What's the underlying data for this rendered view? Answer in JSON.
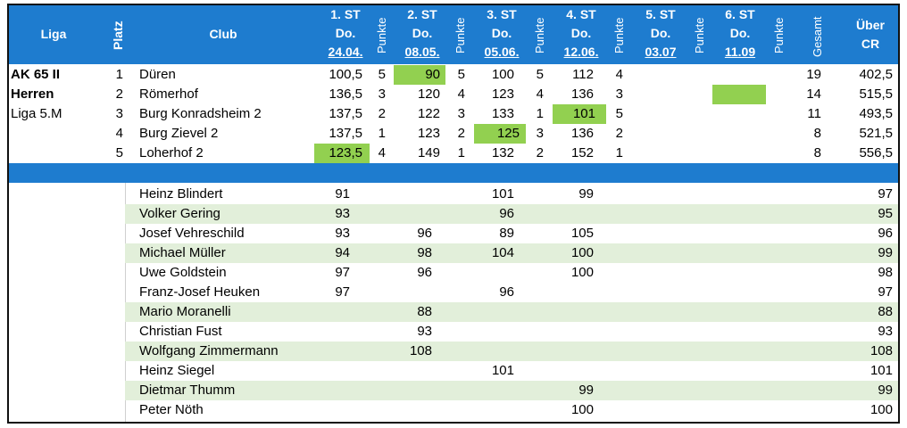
{
  "header": {
    "liga": "Liga",
    "platz": "Platz",
    "club": "Club",
    "st1": [
      "1. ST",
      "Do.",
      "24.04."
    ],
    "st2": [
      "2. ST",
      "Do.",
      "08.05."
    ],
    "st3": [
      "3. ST",
      "Do.",
      "05.06."
    ],
    "st4": [
      "4. ST",
      "Do.",
      "12.06."
    ],
    "st5": [
      "5. ST",
      "Do.",
      "03.07"
    ],
    "st6": [
      "6. ST",
      "Do.",
      "11.09"
    ],
    "punkte": "Punkte",
    "gesamt": "Gesamt",
    "ueber": [
      "Über",
      "CR"
    ]
  },
  "liga_labels": [
    "AK 65 II",
    "Herren",
    "Liga 5.M"
  ],
  "teams": [
    {
      "platz": "1",
      "club": "Düren",
      "s1": "100,5",
      "p1": "5",
      "s2": "90",
      "p2": "5",
      "s3": "100",
      "p3": "5",
      "s4": "112",
      "p4": "4",
      "gesamt": "19",
      "cr": "402,5"
    },
    {
      "platz": "2",
      "club": "Römerhof",
      "s1": "136,5",
      "p1": "3",
      "s2": "120",
      "p2": "4",
      "s3": "123",
      "p3": "4",
      "s4": "136",
      "p4": "3",
      "gesamt": "14",
      "cr": "515,5"
    },
    {
      "platz": "3",
      "club": "Burg Konradsheim 2",
      "s1": "137,5",
      "p1": "2",
      "s2": "122",
      "p2": "3",
      "s3": "133",
      "p3": "1",
      "s4": "101",
      "p4": "5",
      "gesamt": "11",
      "cr": "493,5"
    },
    {
      "platz": "4",
      "club": "Burg Zievel 2",
      "s1": "137,5",
      "p1": "1",
      "s2": "123",
      "p2": "2",
      "s3": "125",
      "p3": "3",
      "s4": "136",
      "p4": "2",
      "gesamt": "8",
      "cr": "521,5"
    },
    {
      "platz": "5",
      "club": "Loherhof 2",
      "s1": "123,5",
      "p1": "4",
      "s2": "149",
      "p2": "1",
      "s3": "132",
      "p3": "2",
      "s4": "152",
      "p4": "1",
      "gesamt": "8",
      "cr": "556,5"
    }
  ],
  "players": [
    {
      "name": "Heinz Blindert",
      "s1": "91",
      "s2": "",
      "s3": "101",
      "s4": "99",
      "cr": "97"
    },
    {
      "name": "Volker Gering",
      "s1": "93",
      "s2": "",
      "s3": "96",
      "s4": "",
      "cr": "95"
    },
    {
      "name": "Josef Vehreschild",
      "s1": "93",
      "s2": "96",
      "s3": "89",
      "s4": "105",
      "cr": "96"
    },
    {
      "name": "Michael Müller",
      "s1": "94",
      "s2": "98",
      "s3": "104",
      "s4": "100",
      "cr": "99"
    },
    {
      "name": "Uwe Goldstein",
      "s1": "97",
      "s2": "96",
      "s3": "",
      "s4": "100",
      "cr": "98"
    },
    {
      "name": "Franz-Josef Heuken",
      "s1": "97",
      "s2": "",
      "s3": "96",
      "s4": "",
      "cr": "97"
    },
    {
      "name": "Mario Moranelli",
      "s1": "",
      "s2": "88",
      "s3": "",
      "s4": "",
      "cr": "88"
    },
    {
      "name": "Christian Fust",
      "s1": "",
      "s2": "93",
      "s3": "",
      "s4": "",
      "cr": "93"
    },
    {
      "name": "Wolfgang Zimmermann",
      "s1": "",
      "s2": "108",
      "s3": "",
      "s4": "",
      "cr": "108"
    },
    {
      "name": "Heinz Siegel",
      "s1": "",
      "s2": "",
      "s3": "101",
      "s4": "",
      "cr": "101"
    },
    {
      "name": "Dietmar Thumm",
      "s1": "",
      "s2": "",
      "s3": "",
      "s4": "99",
      "cr": "99"
    },
    {
      "name": "Peter Nöth",
      "s1": "",
      "s2": "",
      "s3": "",
      "s4": "100",
      "cr": "100"
    }
  ],
  "colors": {
    "header": "#1e7ccf",
    "highlight": "#92d050",
    "stripe": "#e2efda"
  }
}
